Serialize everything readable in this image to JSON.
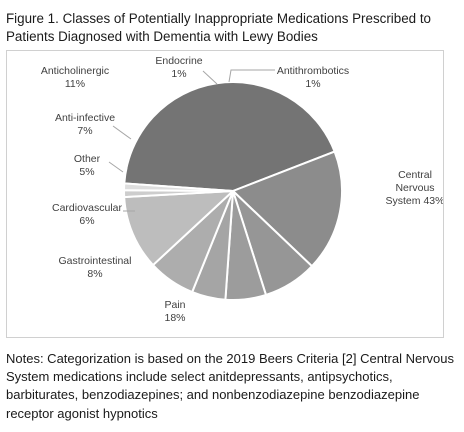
{
  "figure": {
    "title": "Figure 1. Classes of Potentially Inappropriate Medications Prescribed  to Patients Diagnosed with Dementia with Lewy Bodies",
    "notes": "Notes: Categorization is based on the 2019 Beers Criteria [2] Central Nervous System medications include select anitdepressants, antipsychotics, barbiturates, benzodiazepines; and nonbenzodiazepine benzodiazepine receptor agonist hypnotics"
  },
  "chart_data": {
    "type": "pie",
    "title": "",
    "legend": "none",
    "slices": [
      {
        "name": "Central Nervous System",
        "value": 43,
        "label_lines": [
          "Central",
          "Nervous",
          "System 43%"
        ],
        "color": "#747474"
      },
      {
        "name": "Pain",
        "value": 18,
        "label_lines": [
          "Pain",
          "18%"
        ],
        "color": "#8c8c8c"
      },
      {
        "name": "Gastrointestinal",
        "value": 8,
        "label_lines": [
          "Gastrointestinal",
          "8%"
        ],
        "color": "#969696"
      },
      {
        "name": "Cardiovascular",
        "value": 6,
        "label_lines": [
          "Cardiovascular",
          "6%"
        ],
        "color": "#9c9c9c"
      },
      {
        "name": "Other",
        "value": 5,
        "label_lines": [
          "Other",
          "5%"
        ],
        "color": "#a5a5a5"
      },
      {
        "name": "Anti-infective",
        "value": 7,
        "label_lines": [
          "Anti-infective",
          "7%"
        ],
        "color": "#adadad"
      },
      {
        "name": "Anticholinergic",
        "value": 11,
        "label_lines": [
          "Anticholinergic",
          "11%"
        ],
        "color": "#bdbdbd"
      },
      {
        "name": "Endocrine",
        "value": 1,
        "label_lines": [
          "Endocrine",
          "1%"
        ],
        "color": "#cdcdcd"
      },
      {
        "name": "Antithrombotics",
        "value": 1,
        "label_lines": [
          "Antithrombotics",
          "1%"
        ],
        "color": "#dedede"
      }
    ]
  }
}
